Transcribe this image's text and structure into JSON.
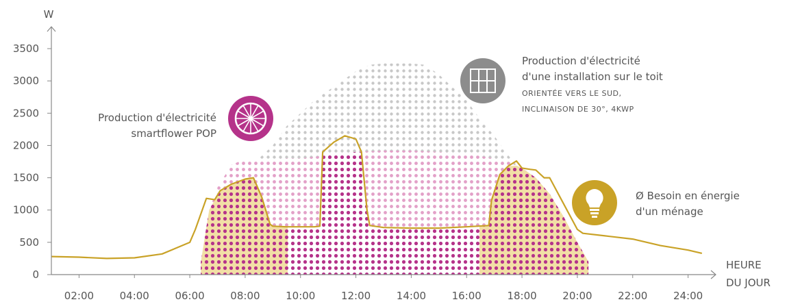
{
  "chart_data": {
    "type": "area",
    "title": "",
    "ylabel": "W",
    "xlabel": [
      "HEURE",
      "DU JOUR"
    ],
    "ylim": [
      0,
      3700
    ],
    "yticks": [
      0,
      500,
      1000,
      1500,
      2000,
      2500,
      3000,
      3500
    ],
    "xlim": [
      1.0,
      25.0
    ],
    "xticks": [
      "02:00",
      "04:00",
      "06:00",
      "08:00",
      "10:00",
      "12:00",
      "14:00",
      "16:00",
      "18:00",
      "20:00",
      "22:00",
      "24:00"
    ],
    "series": [
      {
        "name": "Production d'électricité d'une installation sur le toit",
        "style": "dots",
        "color": "#c8c8c8",
        "x": [
          6.6,
          7.0,
          7.5,
          8.0,
          8.5,
          9.0,
          9.5,
          10.0,
          10.5,
          11.0,
          11.5,
          12.0,
          12.5,
          13.0,
          13.5,
          14.0,
          14.5,
          15.0,
          15.5,
          16.0,
          16.5,
          17.0,
          17.5,
          18.0,
          18.5,
          19.0,
          19.5,
          20.0,
          20.3
        ],
        "y": [
          300,
          900,
          1150,
          1500,
          1800,
          2000,
          2300,
          2500,
          2700,
          2850,
          3000,
          3150,
          3250,
          3270,
          3270,
          3270,
          3250,
          3100,
          2900,
          2700,
          2400,
          2150,
          1850,
          1600,
          1300,
          900,
          600,
          300,
          150
        ]
      },
      {
        "name": "Production d'électricité smartflower POP",
        "style": "dots",
        "color": "#e3a0c8",
        "x": [
          6.4,
          6.7,
          7.0,
          7.5,
          8.0,
          8.5,
          9.0,
          9.5,
          10.0,
          11.0,
          12.0,
          13.0,
          14.0,
          15.0,
          16.0,
          17.0,
          17.5,
          18.0,
          18.5,
          19.0,
          19.5,
          20.0,
          20.4
        ],
        "y": [
          200,
          1000,
          1350,
          1700,
          1790,
          1790,
          1790,
          1800,
          1800,
          1850,
          1900,
          1920,
          1920,
          1900,
          1870,
          1800,
          1750,
          1650,
          1500,
          1250,
          900,
          500,
          200
        ]
      },
      {
        "name": "Ø Besoin en énergie d'un ménage",
        "style": "line",
        "color": "#c9a227",
        "x": [
          1.0,
          2.0,
          3.0,
          4.0,
          5.0,
          6.0,
          6.2,
          6.6,
          6.9,
          7.1,
          7.5,
          8.0,
          8.3,
          8.6,
          8.9,
          9.0,
          9.5,
          10.0,
          10.5,
          10.7,
          10.8,
          11.2,
          11.6,
          12.0,
          12.2,
          12.4,
          12.5,
          13.0,
          14.0,
          15.0,
          16.0,
          16.8,
          16.9,
          17.2,
          17.5,
          17.8,
          18.0,
          18.3,
          18.5,
          18.8,
          19.0,
          19.5,
          20.0,
          20.2,
          21.0,
          22.0,
          23.0,
          24.0,
          24.5
        ],
        "y": [
          280,
          270,
          250,
          260,
          320,
          500,
          700,
          1180,
          1160,
          1300,
          1400,
          1480,
          1500,
          1200,
          780,
          750,
          740,
          740,
          740,
          750,
          1900,
          2050,
          2150,
          2100,
          1900,
          1000,
          760,
          730,
          720,
          720,
          740,
          760,
          1150,
          1550,
          1680,
          1760,
          1650,
          1630,
          1620,
          1500,
          1500,
          1100,
          700,
          640,
          600,
          550,
          450,
          380,
          330
        ]
      }
    ],
    "annotations": [
      {
        "key": "smartflower",
        "lines": [
          "Production d'électricité",
          "smartflower POP"
        ],
        "color": "#b5338a",
        "icon": "smartflower-icon"
      },
      {
        "key": "roof",
        "lines": [
          "Production d'électricité",
          "d'une installation sur le toit",
          "ORIENTÉE VERS LE SUD,",
          "INCLINAISON DE 30°, 4KWP"
        ],
        "color": "#8c8c8c",
        "icon": "solar-panel-icon"
      },
      {
        "key": "household",
        "lines": [
          "Ø Besoin en énergie",
          "d'un ménage"
        ],
        "color": "#c9a227",
        "icon": "light-bulb-icon"
      }
    ],
    "grid": false,
    "legend": "none"
  }
}
